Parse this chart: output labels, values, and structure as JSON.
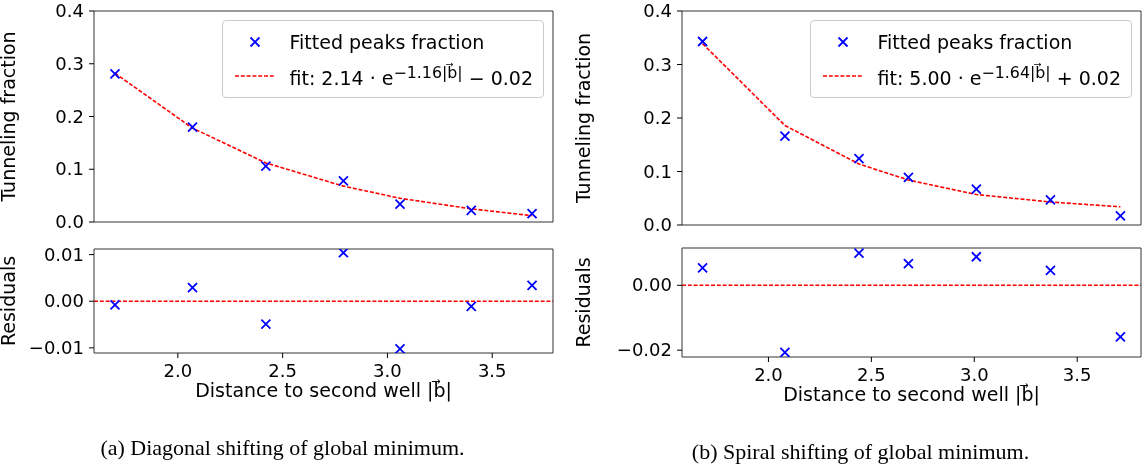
{
  "chart_data": [
    {
      "type": "scatter",
      "ylabel": "Tunneling fraction",
      "xlim": [
        1.6,
        3.79
      ],
      "ylim": [
        0,
        0.4
      ],
      "xticks": [
        {
          "value": 2,
          "label": null
        },
        {
          "value": 2.5,
          "label": null
        },
        {
          "value": 3,
          "label": null
        },
        {
          "value": 3.5,
          "label": null
        }
      ],
      "yticks": [
        {
          "value": 0,
          "label": "0.0"
        },
        0.1,
        0.2,
        0.3,
        0.4
      ],
      "tick_labels": "y",
      "legend": "top right",
      "series": [
        {
          "name": "Fitted peaks fraction",
          "type": "scatter",
          "marker": "cross",
          "color": "#0000ff",
          "x": [
            1.7,
            2.07,
            2.42,
            2.79,
            3.06,
            3.4,
            3.69
          ],
          "values": [
            0.281,
            0.18,
            0.106,
            0.078,
            0.034,
            0.022,
            0.016
          ]
        },
        {
          "name": "fit: 2.14 · e$^{−1.16|b⃗|}$ − 0.02",
          "type": "line",
          "marker": "none",
          "line_style": "dashed",
          "color": "#ff0000",
          "x": [
            1.7,
            2.07,
            2.42,
            2.79,
            3.06,
            3.4,
            3.69
          ],
          "values": [
            0.282,
            0.178,
            0.112,
            0.068,
            0.045,
            0.025,
            0.012
          ]
        }
      ]
    },
    {
      "type": "scatter",
      "xlabel": "Distance to second well |b⃗|",
      "ylabel": "Residuals",
      "xlim": [
        1.6,
        3.79
      ],
      "ylim": [
        -0.0111,
        0.0112
      ],
      "xticks": [
        {
          "value": 2,
          "label": "2.0"
        },
        {
          "value": 2.5,
          "label": "2.5"
        },
        {
          "value": 3,
          "label": "3.0"
        },
        {
          "value": 3.5,
          "label": "3.5"
        }
      ],
      "yticks": [
        {
          "value": -0.01,
          "label": "−0.01"
        },
        {
          "value": 0,
          "label": "0.00"
        },
        0.01
      ],
      "marker": "cross",
      "color": "#0000ff",
      "x": [
        1.7,
        2.07,
        2.42,
        2.79,
        3.06,
        3.4,
        3.69
      ],
      "values": [
        -0.0008,
        0.0029,
        -0.0049,
        0.0104,
        -0.0102,
        -0.0011,
        0.0034
      ],
      "ref_lines": [
        {
          "axis": "y",
          "value": 0,
          "color": "#ff0000",
          "line_style": "dashed"
        }
      ],
      "annotations": [
        "(a) Diagonal shifting of global minimum."
      ]
    },
    {
      "type": "scatter",
      "ylabel": "Tunneling fraction",
      "xlim": [
        1.58,
        3.81
      ],
      "ylim": [
        0,
        0.4
      ],
      "xticks": [
        {
          "value": 2,
          "label": null
        },
        {
          "value": 2.5,
          "label": null
        },
        {
          "value": 3,
          "label": null
        },
        {
          "value": 3.5,
          "label": null
        }
      ],
      "yticks": [
        {
          "value": 0,
          "label": "0.0"
        },
        0.1,
        0.2,
        0.3,
        0.4
      ],
      "tick_labels": "y",
      "legend": "top right",
      "series": [
        {
          "name": "Fitted peaks fraction",
          "type": "scatter",
          "marker": "cross",
          "color": "#0000ff",
          "x": [
            1.68,
            2.08,
            2.44,
            2.68,
            3.01,
            3.37,
            3.71
          ],
          "values": [
            0.343,
            0.166,
            0.124,
            0.089,
            0.067,
            0.047,
            0.017
          ]
        },
        {
          "name": "fit: 5.00 · e$^{−1.64|b⃗|}$ + 0.02",
          "type": "line",
          "marker": "none",
          "line_style": "dashed",
          "color": "#ff0000",
          "x": [
            1.68,
            2.08,
            2.44,
            2.68,
            3.01,
            3.37,
            3.71
          ],
          "values": [
            0.339,
            0.186,
            0.114,
            0.084,
            0.057,
            0.043,
            0.034
          ]
        }
      ]
    },
    {
      "type": "scatter",
      "xlabel": "Distance to second well |b⃗|",
      "ylabel": "Residuals",
      "xlim": [
        1.58,
        3.81
      ],
      "ylim": [
        -0.0221,
        0.0115
      ],
      "xticks": [
        {
          "value": 2,
          "label": "2.0"
        },
        {
          "value": 2.5,
          "label": "2.5"
        },
        {
          "value": 3,
          "label": "3.0"
        },
        {
          "value": 3.5,
          "label": "3.5"
        }
      ],
      "yticks": [
        {
          "value": -0.02,
          "label": "−0.02"
        },
        {
          "value": 0,
          "label": "0.00"
        }
      ],
      "marker": "cross",
      "color": "#0000ff",
      "x": [
        1.68,
        2.08,
        2.44,
        2.68,
        3.01,
        3.37,
        3.71
      ],
      "values": [
        0.0054,
        -0.0207,
        0.0099,
        0.0067,
        0.0088,
        0.0046,
        -0.0159
      ],
      "ref_lines": [
        {
          "axis": "y",
          "value": 0,
          "color": "#ff0000",
          "line_style": "dashed"
        }
      ],
      "annotations": [
        "(b) Spiral shifting of global minimum."
      ]
    }
  ]
}
